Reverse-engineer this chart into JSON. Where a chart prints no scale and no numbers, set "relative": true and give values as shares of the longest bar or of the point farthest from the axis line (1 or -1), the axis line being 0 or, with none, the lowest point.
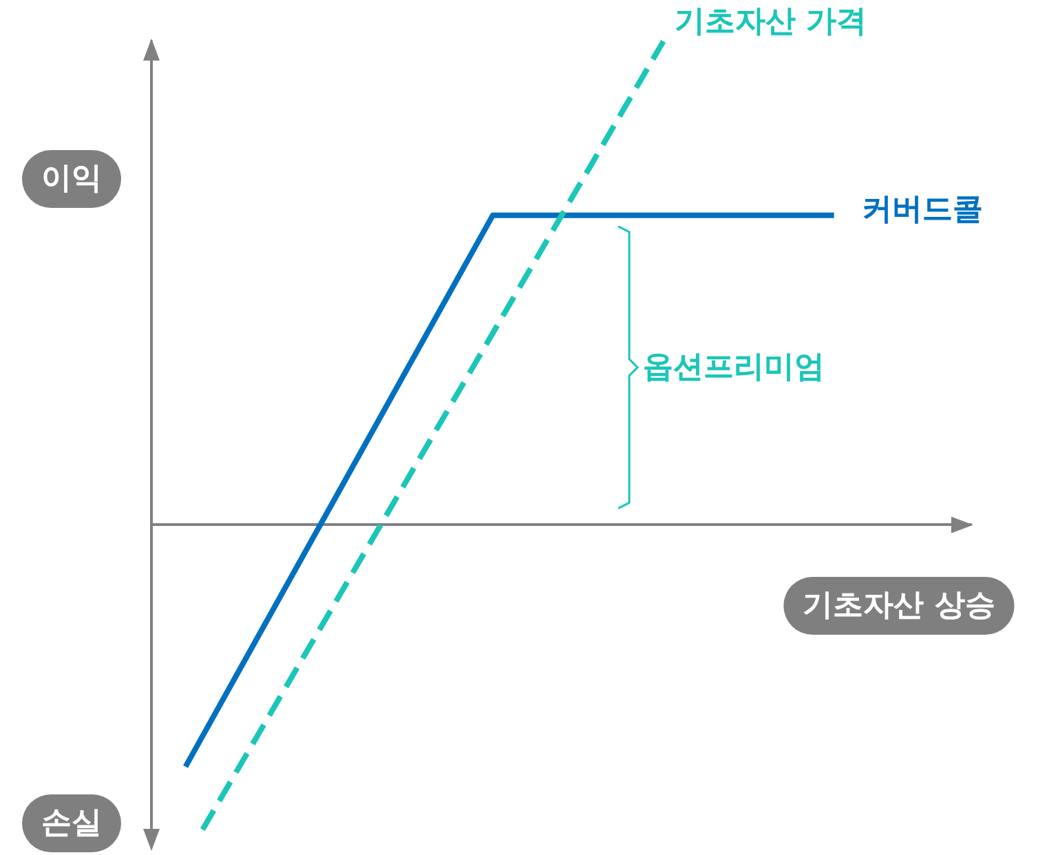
{
  "chart_data": {
    "type": "line",
    "relative": true,
    "ylabel": "이익",
    "xlabel": "기초자산 상승",
    "annotations": [
      "손실",
      "옵션프리미엄"
    ],
    "categories": [
      null,
      null,
      null,
      null,
      null,
      null,
      null,
      null,
      null,
      null,
      null,
      null,
      null,
      null,
      null,
      null,
      null,
      null,
      null,
      null,
      null,
      null,
      null,
      null,
      null,
      null,
      null,
      null,
      null,
      null,
      null,
      null,
      null,
      null,
      null,
      null,
      null,
      null,
      null,
      null,
      null,
      null,
      null,
      null,
      null,
      null,
      null,
      null,
      null
    ],
    "series": [
      {
        "name": "커버드콜",
        "color": "#0070c0",
        "line_style": "solid",
        "values": [
          null,
          null,
          -0.5,
          null,
          null,
          null,
          null,
          null,
          null,
          null,
          null,
          null,
          null,
          null,
          null,
          null,
          null,
          null,
          null,
          null,
          0.64,
          null,
          null,
          null,
          null,
          null,
          null,
          null,
          null,
          null,
          null,
          null,
          null,
          null,
          null,
          null,
          null,
          null,
          null,
          null,
          0.64,
          null,
          null,
          null,
          null,
          null,
          null,
          null,
          null
        ]
      },
      {
        "name": "기초자산 가격",
        "color": "#1ac6b8",
        "line_style": "dashed",
        "values": [
          null,
          null,
          null,
          -0.63,
          null,
          null,
          null,
          null,
          null,
          null,
          null,
          null,
          null,
          null,
          null,
          null,
          null,
          null,
          null,
          null,
          null,
          null,
          null,
          null,
          null,
          null,
          null,
          null,
          null,
          null,
          1.0,
          null,
          null,
          null,
          null,
          null,
          null,
          null,
          null,
          null,
          null,
          null,
          null,
          null,
          null,
          null,
          null,
          null,
          null
        ]
      }
    ],
    "grid": false,
    "legend": false,
    "marker": "none"
  }
}
